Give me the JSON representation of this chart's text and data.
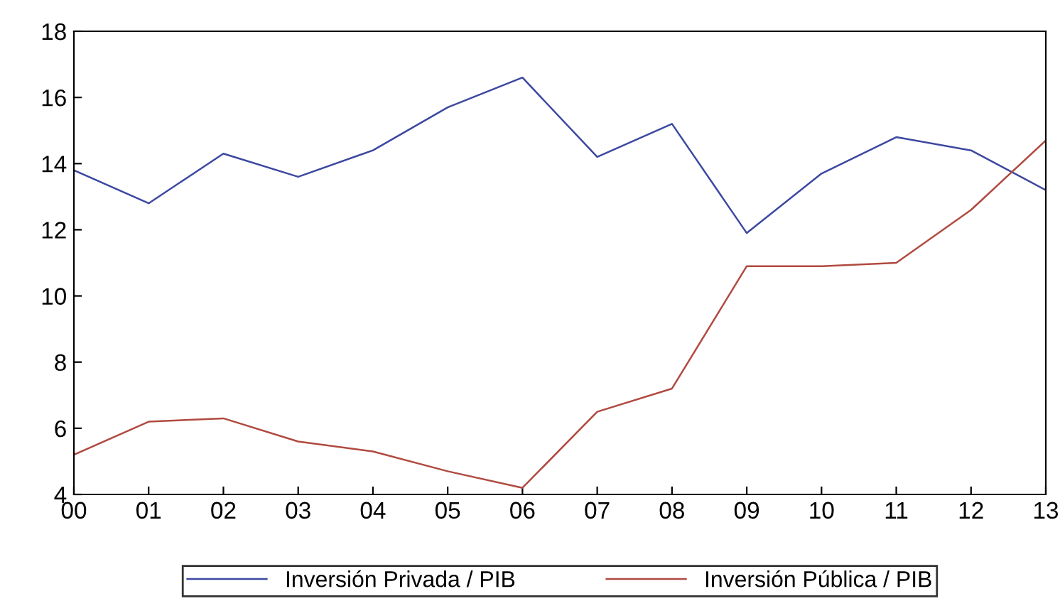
{
  "chart_data": {
    "type": "line",
    "categories": [
      "00",
      "01",
      "02",
      "03",
      "04",
      "05",
      "06",
      "07",
      "08",
      "09",
      "10",
      "11",
      "12",
      "13"
    ],
    "series": [
      {
        "name": "Inversión Privada / PIB",
        "color": "#3c48a0",
        "values": [
          13.8,
          12.8,
          14.3,
          13.6,
          14.4,
          15.7,
          16.6,
          14.2,
          15.2,
          11.9,
          13.7,
          14.8,
          14.4,
          13.2
        ]
      },
      {
        "name": "Inversión Pública / PIB",
        "color": "#b04a40",
        "values": [
          5.2,
          6.2,
          6.3,
          5.6,
          5.3,
          4.7,
          4.2,
          6.5,
          7.2,
          10.9,
          10.9,
          11.0,
          12.6,
          14.7
        ]
      }
    ],
    "ylim": [
      4,
      18
    ],
    "yticks": [
      4,
      6,
      8,
      10,
      12,
      14,
      16,
      18
    ],
    "grid": false,
    "legend": "bottom",
    "marker": "none",
    "line_style": "solid"
  }
}
